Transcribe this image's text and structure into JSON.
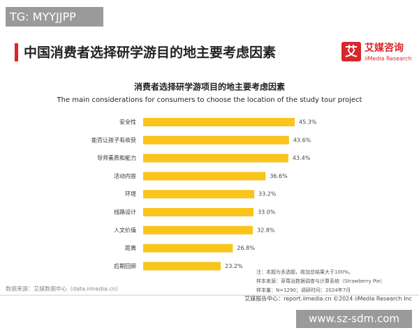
{
  "watermark": "TG: MYYJJPP",
  "header": {
    "title": "中国消费者选择研学游目的地主要考虑因素",
    "logo_mark": "艾",
    "logo_name": "艾媒咨询",
    "logo_sub": "iiMedia Research"
  },
  "chart_data": {
    "type": "bar",
    "orientation": "horizontal",
    "title": "消费者选择研学游项目的地主要考虑因素",
    "subtitle": "The main considerations for consumers to choose the location of the study tour project",
    "categories": [
      "安全性",
      "能否让孩子有收获",
      "导师素质和能力",
      "活动内容",
      "环境",
      "线路设计",
      "人文价值",
      "距离",
      "后期回顾"
    ],
    "values": [
      45.3,
      43.6,
      43.4,
      36.6,
      33.2,
      33.0,
      32.8,
      26.8,
      23.2
    ],
    "value_labels": [
      "45.3%",
      "43.6%",
      "43.4%",
      "36.6%",
      "33.2%",
      "33.0%",
      "32.8%",
      "26.8%",
      "23.2%"
    ],
    "color": "#fbc41a"
  },
  "notes": [
    "注：本题为多选题，故加总结果大于100%。",
    "样本来源：草莓派数据调查与计算系统（Strawberry Pie）",
    "样本量：N=1290；调研时间：2024年7月"
  ],
  "source": "数据来源：艾媒数据中心（data.iimedia.cn）",
  "footer": "艾媒报告中心：report.iimedia.cn   ©2024  iiMedia Research  Inc",
  "site": "www.sz-sdm.com"
}
